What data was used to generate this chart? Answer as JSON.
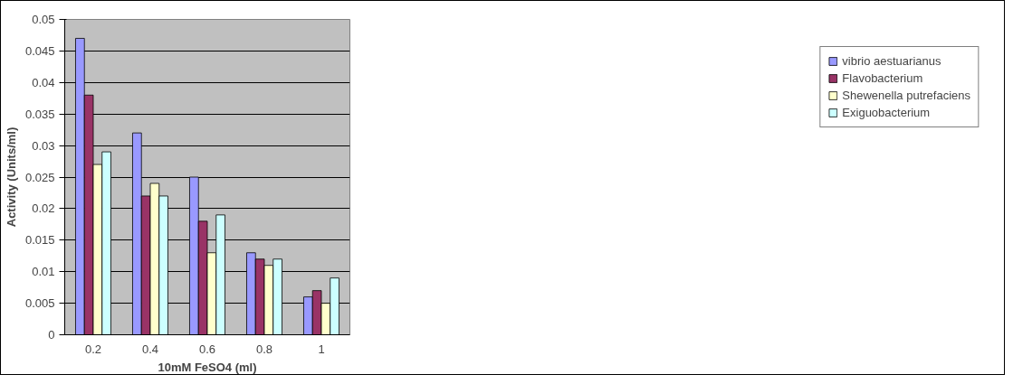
{
  "chart_data": {
    "type": "bar",
    "xlabel": "10mM FeSO4 (ml)",
    "ylabel": "Activity (Units/ml)",
    "categories": [
      "0.2",
      "0.4",
      "0.6",
      "0.8",
      "1"
    ],
    "series": [
      {
        "name": "vibrio aestuarianus",
        "color": "#9999ff",
        "values": [
          0.047,
          0.032,
          0.025,
          0.013,
          0.006
        ]
      },
      {
        "name": "Flavobacterium",
        "color": "#993366",
        "values": [
          0.038,
          0.022,
          0.018,
          0.012,
          0.007
        ]
      },
      {
        "name": "Shewenella putrefaciens",
        "color": "#ffffcc",
        "values": [
          0.027,
          0.024,
          0.013,
          0.011,
          0.005
        ]
      },
      {
        "name": "Exiguobacterium",
        "color": "#ccffff",
        "values": [
          0.029,
          0.022,
          0.019,
          0.012,
          0.009
        ]
      }
    ],
    "ylim": [
      0,
      0.05
    ],
    "yticks": [
      0,
      0.005,
      0.01,
      0.015,
      0.02,
      0.025,
      0.03,
      0.035,
      0.04,
      0.045,
      0.05
    ],
    "grid": "y",
    "legend": "right"
  }
}
